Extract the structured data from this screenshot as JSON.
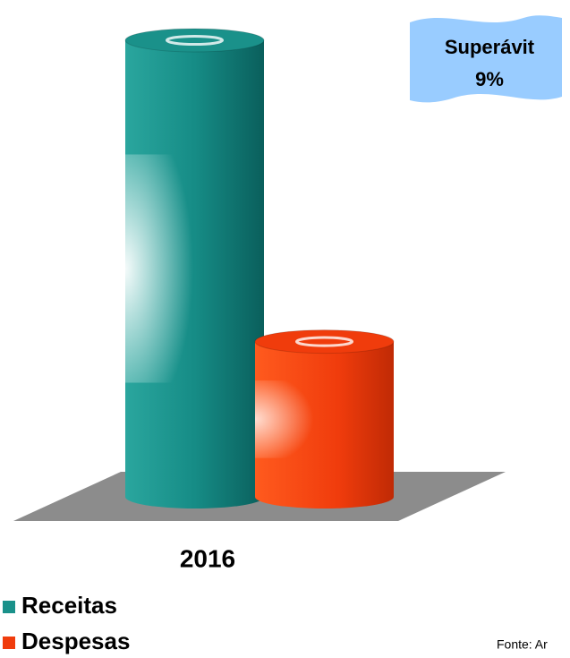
{
  "chart_data": {
    "type": "bar",
    "categories": [
      "2016"
    ],
    "series": [
      {
        "name": "Receitas",
        "color": "#1a918a",
        "values": [
          100
        ]
      },
      {
        "name": "Despesas",
        "color": "#f03c0c",
        "values": [
          34
        ]
      }
    ],
    "ylim": [
      0,
      100
    ],
    "annotation": [
      "Superávit",
      "9%"
    ],
    "source": "Fonte: Ar"
  }
}
